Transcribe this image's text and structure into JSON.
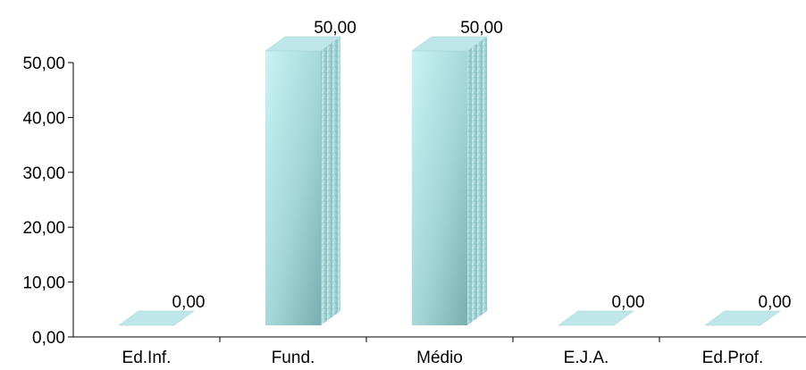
{
  "chart_data": {
    "type": "bar",
    "style": "3d-columns",
    "categories": [
      "Ed.Inf.",
      "Fund.",
      "Médio",
      "E.J.A.",
      "Ed.Prof."
    ],
    "values": [
      0,
      50,
      50,
      0,
      0
    ],
    "data_labels": [
      "0,00",
      "50,00",
      "50,00",
      "0,00",
      "0,00"
    ],
    "yticks": [
      0,
      10,
      20,
      30,
      40,
      50
    ],
    "ytick_labels": [
      "0,00",
      "10,00",
      "20,00",
      "30,00",
      "40,00",
      "50,00"
    ],
    "ylim": [
      0,
      50
    ],
    "grid": false,
    "legend": "none",
    "colors": {
      "front_light": "#c4f1f1",
      "front_dark": "#7fb9bb",
      "side": "#9fcfd2",
      "top": "#bfe6e8",
      "axis": "#000000"
    }
  }
}
